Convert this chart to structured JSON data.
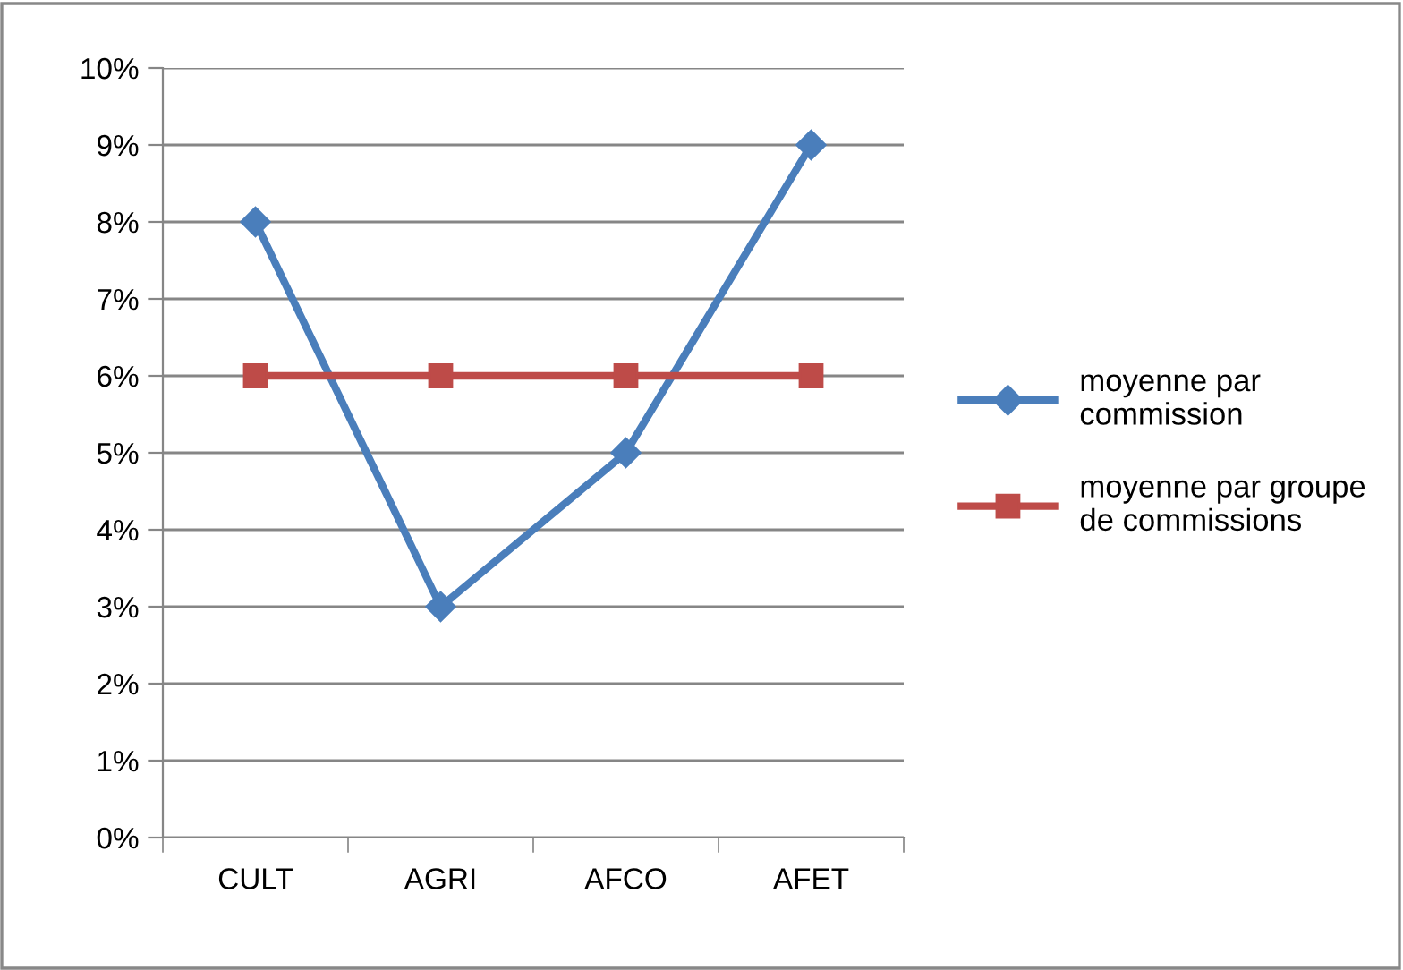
{
  "chart_data": {
    "type": "line",
    "categories": [
      "CULT",
      "AGRI",
      "AFCO",
      "AFET"
    ],
    "series": [
      {
        "name": "moyenne par commission",
        "color": "#4a7ebb",
        "values": [
          8,
          3,
          5,
          9
        ],
        "marker": "diamond"
      },
      {
        "name": "moyenne par groupe de commissions",
        "color": "#be4b48",
        "values": [
          6,
          6,
          6,
          6
        ],
        "marker": "square"
      }
    ],
    "ylim": [
      0,
      10
    ],
    "yticks": [
      {
        "value": 0,
        "label": "0%"
      },
      {
        "value": 1,
        "label": "1%"
      },
      {
        "value": 2,
        "label": "2%"
      },
      {
        "value": 3,
        "label": "3%"
      },
      {
        "value": 4,
        "label": "4%"
      },
      {
        "value": 5,
        "label": "5%"
      },
      {
        "value": 6,
        "label": "6%"
      },
      {
        "value": 7,
        "label": "7%"
      },
      {
        "value": 8,
        "label": "8%"
      },
      {
        "value": 9,
        "label": "9%"
      },
      {
        "value": 10,
        "label": "10%"
      }
    ],
    "grid": "y",
    "legend": "right",
    "line_style": "solid"
  }
}
